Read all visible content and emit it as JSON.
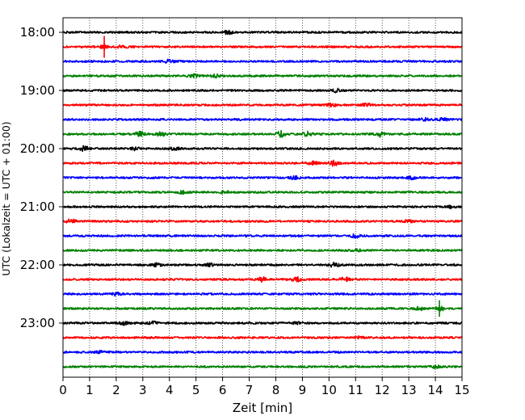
{
  "chart_data": {
    "type": "line",
    "title": "",
    "xlabel": "Zeit  [min]",
    "ylabel": "UTC (Lokalzeit = UTC + 01:00)",
    "xlim": [
      0,
      15
    ],
    "x_ticks": [
      "0",
      "1",
      "2",
      "3",
      "4",
      "5",
      "6",
      "7",
      "8",
      "9",
      "10",
      "11",
      "12",
      "13",
      "14",
      "15"
    ],
    "y_ticks": [
      "18:00",
      "19:00",
      "20:00",
      "21:00",
      "22:00",
      "23:00"
    ],
    "grid": "vertical dotted",
    "trace_interval_min": 15,
    "color_cycle": [
      "#000000",
      "#ff0000",
      "#0000ff",
      "#008000"
    ],
    "series": [
      {
        "start": "18:00",
        "color": "#000000",
        "events": [
          {
            "t": 6.2,
            "a": 1.8
          }
        ]
      },
      {
        "start": "18:15",
        "color": "#ff0000",
        "events": [
          {
            "t": 1.55,
            "a": 4.5,
            "spike": true
          },
          {
            "t": 2.2,
            "a": 1.4
          }
        ]
      },
      {
        "start": "18:30",
        "color": "#0000ff",
        "events": [
          {
            "t": 4.0,
            "a": 1.8
          }
        ]
      },
      {
        "start": "18:45",
        "color": "#008000",
        "events": [
          {
            "t": 4.9,
            "a": 1.6
          },
          {
            "t": 5.7,
            "a": 1.6
          }
        ]
      },
      {
        "start": "19:00",
        "color": "#000000",
        "events": [
          {
            "t": 10.3,
            "a": 1.9
          }
        ]
      },
      {
        "start": "19:15",
        "color": "#ff0000",
        "events": [
          {
            "t": 10.1,
            "a": 1.6
          },
          {
            "t": 11.4,
            "a": 1.8
          }
        ]
      },
      {
        "start": "19:30",
        "color": "#0000ff",
        "events": [
          {
            "t": 13.6,
            "a": 1.6
          },
          {
            "t": 14.3,
            "a": 1.4
          }
        ]
      },
      {
        "start": "19:45",
        "color": "#008000",
        "events": [
          {
            "t": 2.9,
            "a": 2.4
          },
          {
            "t": 3.7,
            "a": 2.6
          },
          {
            "t": 8.2,
            "a": 3.2
          },
          {
            "t": 9.2,
            "a": 2.4
          },
          {
            "t": 11.9,
            "a": 2.8
          }
        ]
      },
      {
        "start": "20:00",
        "color": "#000000",
        "events": [
          {
            "t": 0.8,
            "a": 2.6
          },
          {
            "t": 2.7,
            "a": 1.6
          },
          {
            "t": 4.2,
            "a": 1.8
          }
        ]
      },
      {
        "start": "20:15",
        "color": "#ff0000",
        "events": [
          {
            "t": 9.4,
            "a": 1.8
          },
          {
            "t": 10.2,
            "a": 3.2
          }
        ]
      },
      {
        "start": "20:30",
        "color": "#0000ff",
        "events": [
          {
            "t": 8.7,
            "a": 1.8
          },
          {
            "t": 13.1,
            "a": 1.5
          }
        ]
      },
      {
        "start": "20:45",
        "color": "#008000",
        "events": [
          {
            "t": 4.5,
            "a": 1.4
          },
          {
            "t": 6.1,
            "a": 1.4
          }
        ]
      },
      {
        "start": "21:00",
        "color": "#000000",
        "events": [
          {
            "t": 14.6,
            "a": 1.5
          }
        ]
      },
      {
        "start": "21:15",
        "color": "#ff0000",
        "events": [
          {
            "t": 0.3,
            "a": 2.2
          },
          {
            "t": 13.0,
            "a": 1.5
          }
        ]
      },
      {
        "start": "21:30",
        "color": "#0000ff",
        "events": [
          {
            "t": 11.0,
            "a": 1.8
          }
        ]
      },
      {
        "start": "21:45",
        "color": "#008000",
        "events": [
          {
            "t": 11.1,
            "a": 1.4
          }
        ]
      },
      {
        "start": "22:00",
        "color": "#000000",
        "events": [
          {
            "t": 3.5,
            "a": 1.7
          },
          {
            "t": 5.5,
            "a": 1.4
          },
          {
            "t": 10.2,
            "a": 2.6
          }
        ]
      },
      {
        "start": "22:15",
        "color": "#ff0000",
        "events": [
          {
            "t": 7.5,
            "a": 2.4
          },
          {
            "t": 8.8,
            "a": 2.2
          },
          {
            "t": 10.6,
            "a": 2.6
          }
        ]
      },
      {
        "start": "22:30",
        "color": "#0000ff",
        "events": [
          {
            "t": 2.0,
            "a": 1.5
          }
        ]
      },
      {
        "start": "22:45",
        "color": "#008000",
        "events": [
          {
            "t": 13.4,
            "a": 1.8
          },
          {
            "t": 14.15,
            "a": 3.4,
            "spike": true
          }
        ]
      },
      {
        "start": "23:00",
        "color": "#000000",
        "events": [
          {
            "t": 2.3,
            "a": 2.0
          },
          {
            "t": 3.4,
            "a": 1.6
          },
          {
            "t": 8.8,
            "a": 1.5
          }
        ]
      },
      {
        "start": "23:15",
        "color": "#ff0000",
        "events": [
          {
            "t": 11.1,
            "a": 1.2
          }
        ]
      },
      {
        "start": "23:30",
        "color": "#0000ff",
        "events": [
          {
            "t": 1.4,
            "a": 1.2
          }
        ]
      },
      {
        "start": "23:45",
        "color": "#008000",
        "events": [
          {
            "t": 14.0,
            "a": 1.3
          }
        ]
      }
    ]
  }
}
